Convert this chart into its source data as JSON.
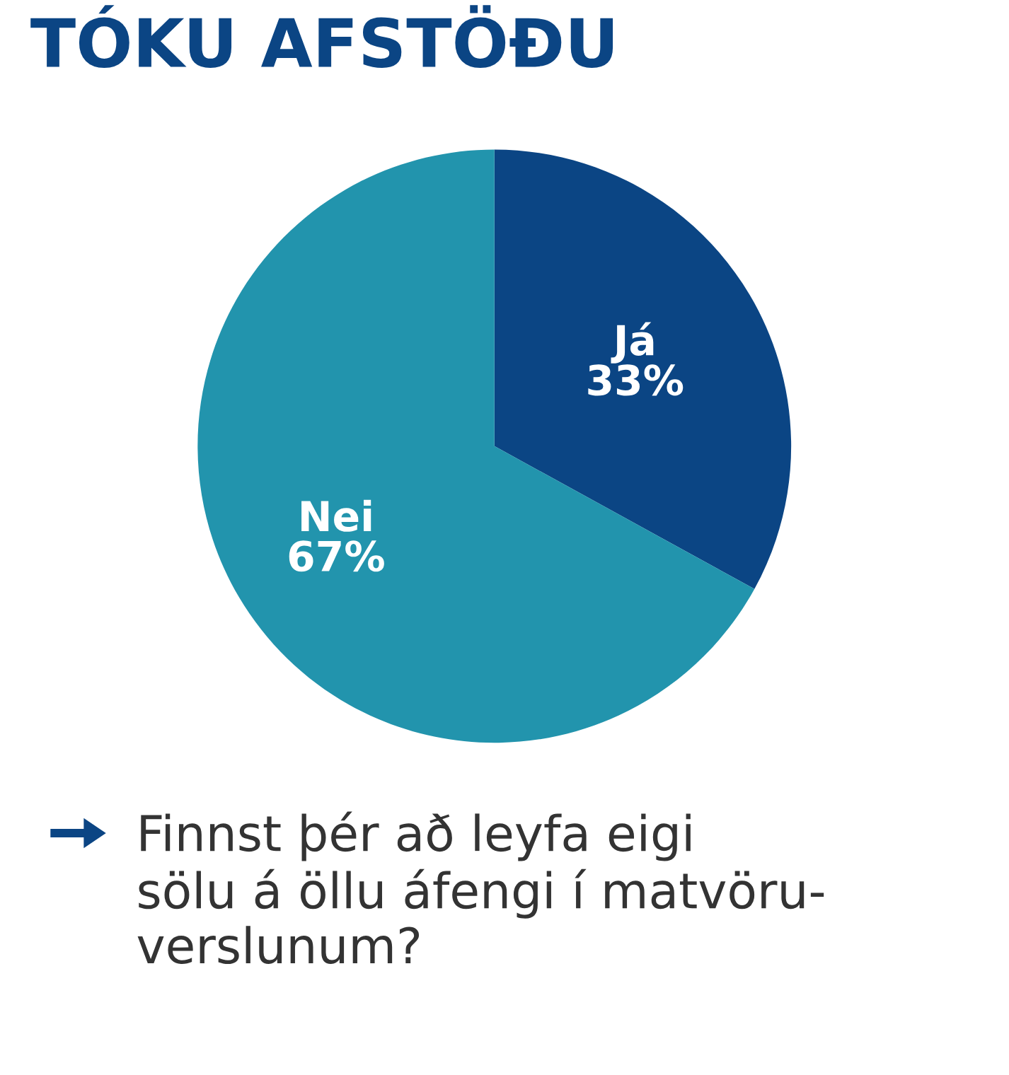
{
  "chart_data": {
    "type": "pie",
    "title": "TÓKU AFSTÖÐU",
    "categories": [
      "Já",
      "Nei"
    ],
    "values": [
      33,
      67
    ],
    "colors": [
      "#0b4584",
      "#2294ad"
    ],
    "value_labels": [
      "33%",
      "67%"
    ],
    "legend": false,
    "annotations": [
      "Finnst þér að leyfa eigi\nsölu á öllu áfengi í matvöru-\nverslunum?"
    ]
  }
}
